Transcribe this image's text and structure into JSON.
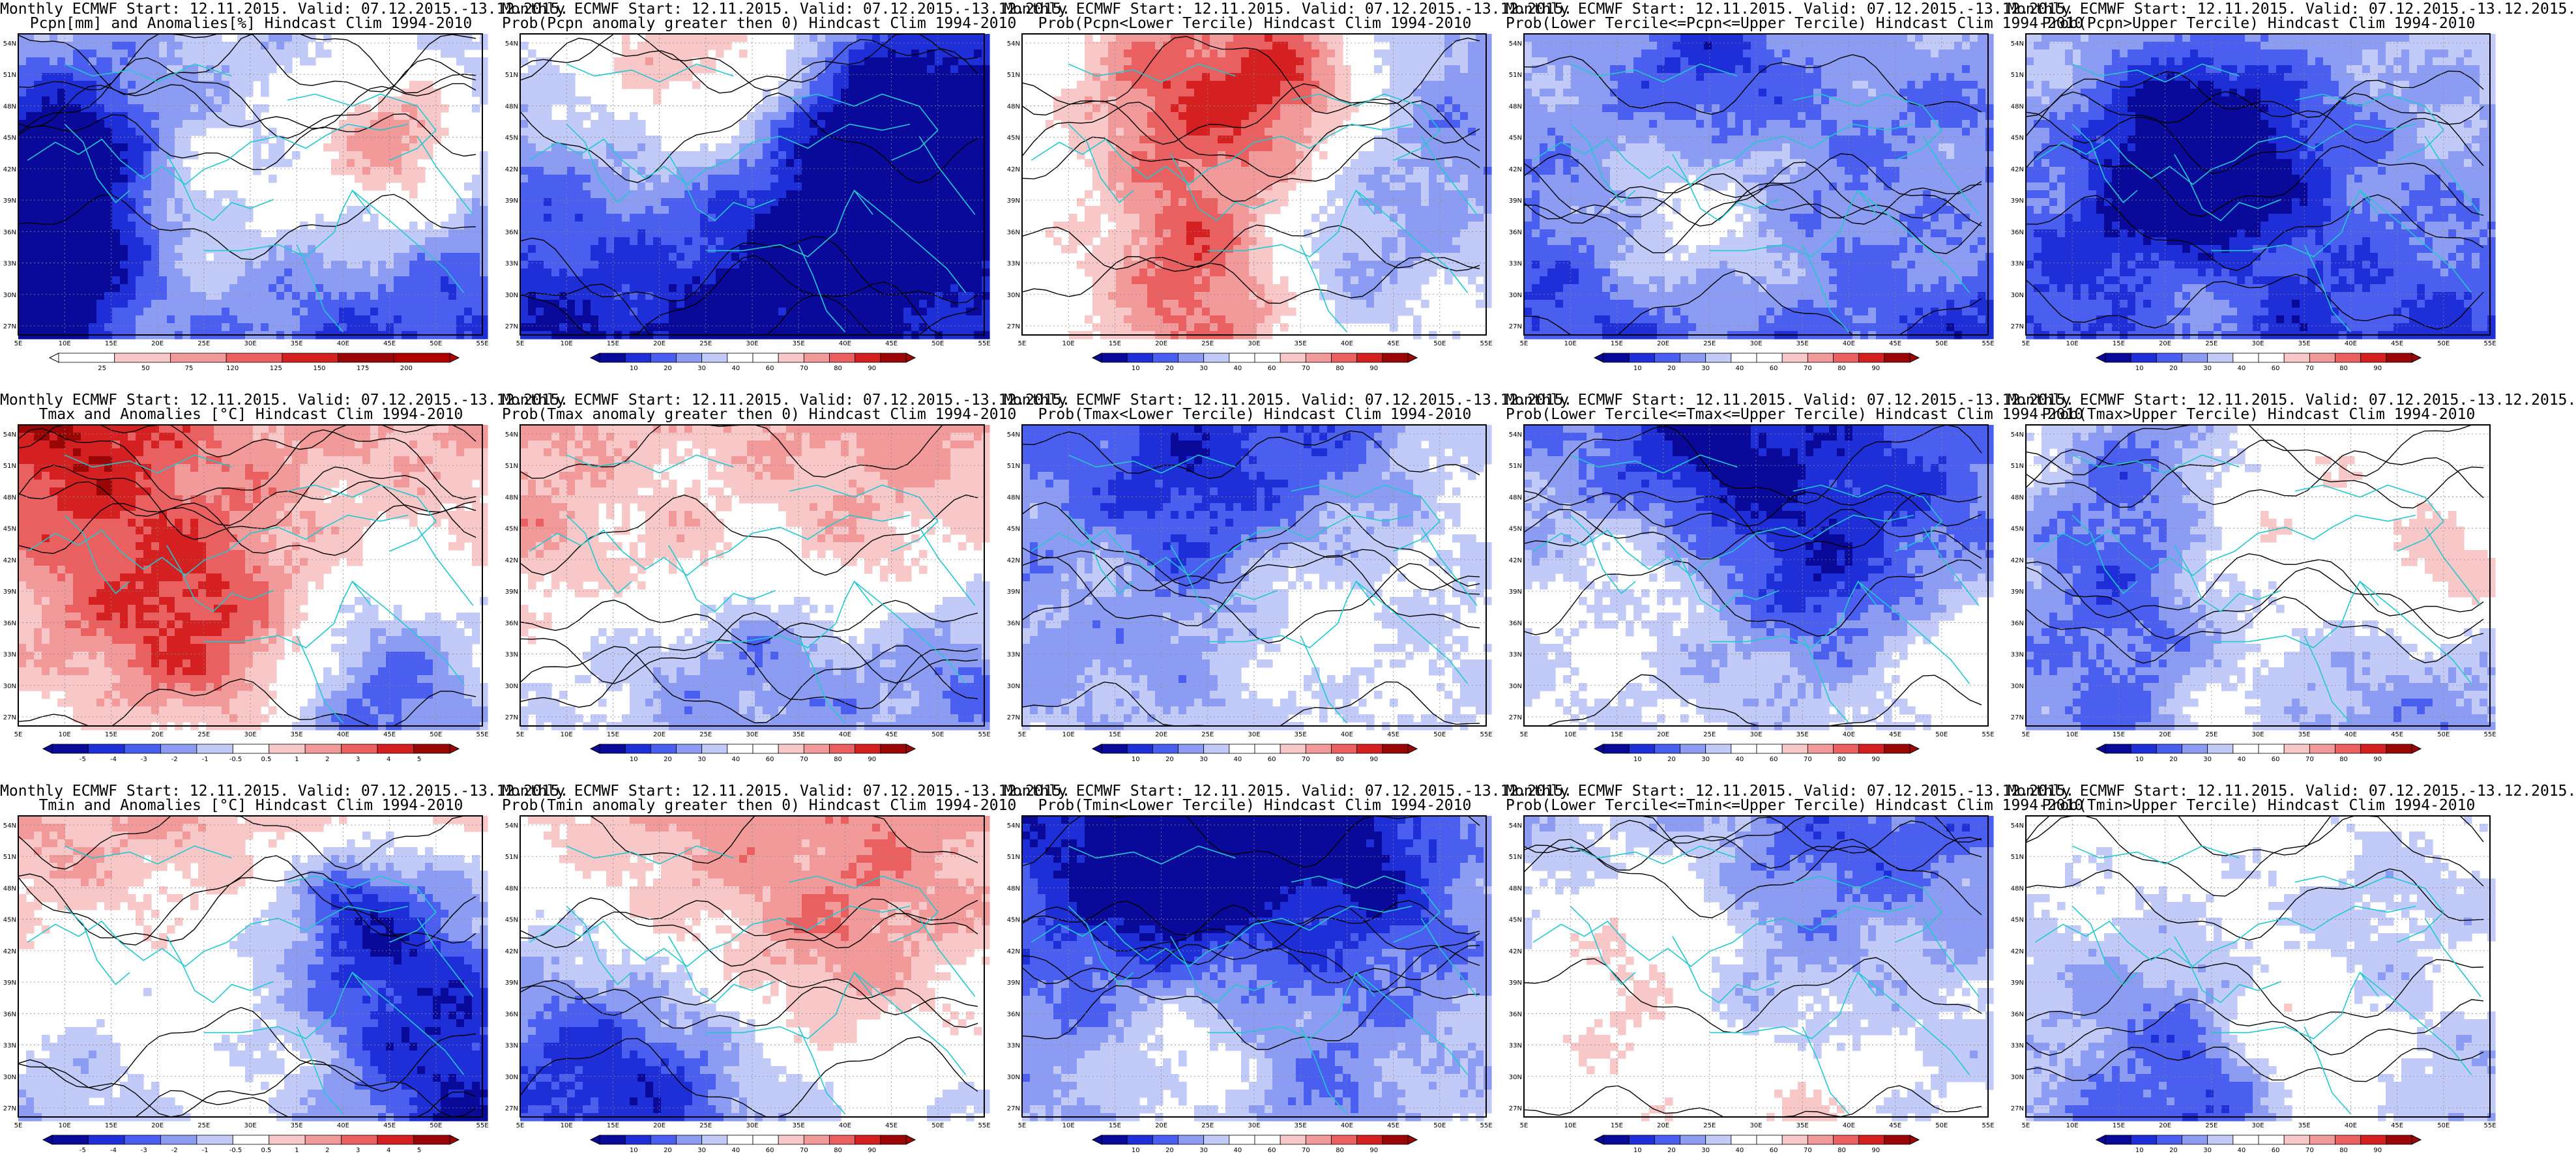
{
  "header_line": "Monthly ECMWF Start: 12.11.2015. Valid: 07.12.2015.-13.12.2015.",
  "rows": [
    {
      "variable": "Pcpn",
      "panels": [
        {
          "title": "Pcpn[mm] and Anomalies[%] Hindcast Clim 1994-2010",
          "scale": "anom_pcpn"
        },
        {
          "title": "Prob(Pcpn anomaly greater then 0) Hindcast Clim 1994-2010",
          "scale": "prob"
        },
        {
          "title": "Prob(Pcpn<Lower Tercile) Hindcast Clim 1994-2010",
          "scale": "prob"
        },
        {
          "title": "Prob(Lower Tercile<=Pcpn<=Upper Tercile) Hindcast Clim 1994-2010",
          "scale": "prob"
        },
        {
          "title": "Prob(Pcpn>Upper Tercile) Hindcast Clim 1994-2010",
          "scale": "prob"
        }
      ]
    },
    {
      "variable": "Tmax",
      "panels": [
        {
          "title": "Tmax and Anomalies [°C] Hindcast Clim 1994-2010",
          "scale": "anom_temp"
        },
        {
          "title": "Prob(Tmax anomaly greater then 0) Hindcast Clim 1994-2010",
          "scale": "prob"
        },
        {
          "title": "Prob(Tmax<Lower Tercile) Hindcast Clim 1994-2010",
          "scale": "prob"
        },
        {
          "title": "Prob(Lower Tercile<=Tmax<=Upper Tercile) Hindcast Clim 1994-2010",
          "scale": "prob"
        },
        {
          "title": "Prob(Tmax>Upper Tercile) Hindcast Clim 1994-2010",
          "scale": "prob"
        }
      ]
    },
    {
      "variable": "Tmin",
      "panels": [
        {
          "title": "Tmin and Anomalies [°C] Hindcast Clim 1994-2010",
          "scale": "anom_temp"
        },
        {
          "title": "Prob(Tmin anomaly greater then 0) Hindcast Clim 1994-2010",
          "scale": "prob"
        },
        {
          "title": "Prob(Tmin<Lower Tercile) Hindcast Clim 1994-2010",
          "scale": "prob"
        },
        {
          "title": "Prob(Lower Tercile<=Tmin<=Upper Tercile) Hindcast Clim 1994-2010",
          "scale": "prob"
        },
        {
          "title": "Prob(Tmin>Upper Tercile) Hindcast Clim 1994-2010",
          "scale": "prob"
        }
      ]
    }
  ],
  "axes": {
    "lon_labels": [
      "5E",
      "10E",
      "15E",
      "20E",
      "25E",
      "30E",
      "35E",
      "40E",
      "45E",
      "50E",
      "55E"
    ],
    "lat_labels": [
      "54N",
      "51N",
      "48N",
      "45N",
      "42N",
      "39N",
      "36N",
      "33N",
      "30N",
      "27N"
    ]
  },
  "colorbars": {
    "prob": [
      "10",
      "20",
      "30",
      "40",
      "60",
      "70",
      "80",
      "90"
    ],
    "anom_temp": [
      "-5",
      "-4",
      "-3",
      "-2",
      "-1",
      "-0.5",
      "0.5",
      "1",
      "2",
      "3",
      "4",
      "5"
    ],
    "anom_pcpn": [
      "25",
      "50",
      "75",
      "120",
      "125",
      "150",
      "175",
      "200"
    ]
  },
  "colors": {
    "blue_scale": [
      "#0a0a9a",
      "#1e2fd8",
      "#4a5ff0",
      "#8c9cf2",
      "#c2cbf8"
    ],
    "red_scale": [
      "#f8c8c8",
      "#f29a9a",
      "#ea6060",
      "#d42020",
      "#9a0606"
    ],
    "coast": "#22c8d0",
    "contour": "#000000"
  }
}
